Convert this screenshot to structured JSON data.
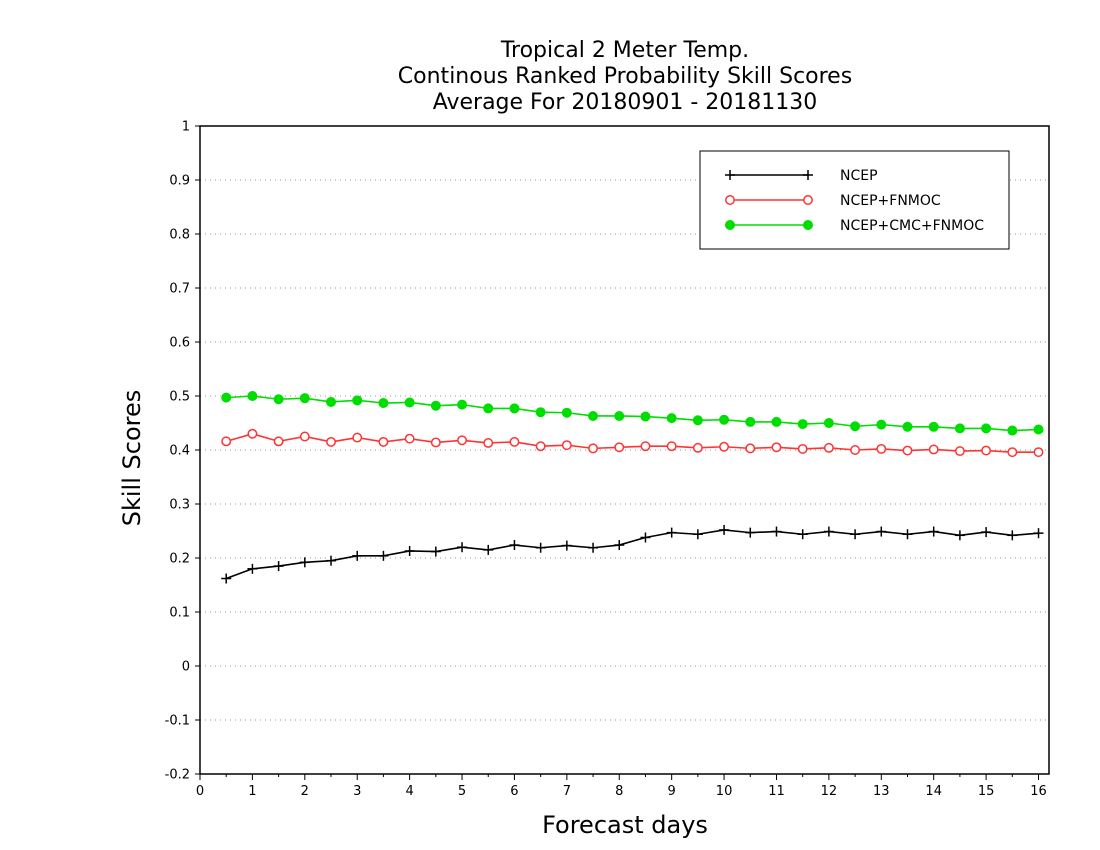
{
  "chart_data": {
    "type": "line",
    "title": [
      "Tropical 2 Meter Temp.",
      "Continous Ranked Probability Skill Scores",
      "Average For 20180901 - 20181130"
    ],
    "xlabel": "Forecast days",
    "ylabel": "Skill Scores",
    "xlim": [
      0,
      16.2
    ],
    "ylim": [
      -0.2,
      1
    ],
    "xticks": [
      0,
      1,
      2,
      3,
      4,
      5,
      6,
      7,
      8,
      9,
      10,
      11,
      12,
      13,
      14,
      15,
      16
    ],
    "xtick_labels": [
      "0",
      "1",
      "2",
      "3",
      "4",
      "5",
      "6",
      "7",
      "8",
      "9",
      "10",
      "11",
      "12",
      "13",
      "14",
      "15",
      "16"
    ],
    "yticks": [
      -0.2,
      -0.1,
      0,
      0.1,
      0.2,
      0.3,
      0.4,
      0.5,
      0.6,
      0.7,
      0.8,
      0.9,
      1
    ],
    "ytick_labels": [
      "-0.2",
      "-0.1",
      "0",
      "0.1",
      "0.2",
      "0.3",
      "0.4",
      "0.5",
      "0.6",
      "0.7",
      "0.8",
      "0.9",
      "1"
    ],
    "grid": "horizontal dotted",
    "legend_position": "top-right",
    "x": [
      0.5,
      1,
      1.5,
      2,
      2.5,
      3,
      3.5,
      4,
      4.5,
      5,
      5.5,
      6,
      6.5,
      7,
      7.5,
      8,
      8.5,
      9,
      9.5,
      10,
      10.5,
      11,
      11.5,
      12,
      12.5,
      13,
      13.5,
      14,
      14.5,
      15,
      15.5,
      16
    ],
    "series": [
      {
        "name": "NCEP",
        "color": "#000000",
        "marker": "plus",
        "values": [
          0.162,
          0.18,
          0.185,
          0.192,
          0.195,
          0.204,
          0.204,
          0.213,
          0.212,
          0.22,
          0.215,
          0.224,
          0.219,
          0.223,
          0.219,
          0.224,
          0.238,
          0.247,
          0.244,
          0.252,
          0.247,
          0.249,
          0.244,
          0.249,
          0.244,
          0.249,
          0.244,
          0.249,
          0.242,
          0.248,
          0.242,
          0.246
        ]
      },
      {
        "name": "NCEP+FNMOC",
        "color": "#ff3333",
        "marker": "open-circle",
        "values": [
          0.416,
          0.43,
          0.416,
          0.425,
          0.415,
          0.423,
          0.415,
          0.421,
          0.414,
          0.418,
          0.413,
          0.415,
          0.407,
          0.409,
          0.403,
          0.405,
          0.407,
          0.407,
          0.404,
          0.406,
          0.403,
          0.405,
          0.402,
          0.404,
          0.4,
          0.402,
          0.399,
          0.401,
          0.398,
          0.399,
          0.396,
          0.396
        ]
      },
      {
        "name": "NCEP+CMC+FNMOC",
        "color": "#00dd00",
        "marker": "filled-circle",
        "values": [
          0.497,
          0.5,
          0.494,
          0.496,
          0.489,
          0.492,
          0.487,
          0.488,
          0.482,
          0.484,
          0.477,
          0.477,
          0.47,
          0.469,
          0.463,
          0.463,
          0.462,
          0.459,
          0.455,
          0.456,
          0.452,
          0.452,
          0.448,
          0.45,
          0.444,
          0.447,
          0.443,
          0.443,
          0.44,
          0.44,
          0.436,
          0.438
        ]
      }
    ]
  }
}
